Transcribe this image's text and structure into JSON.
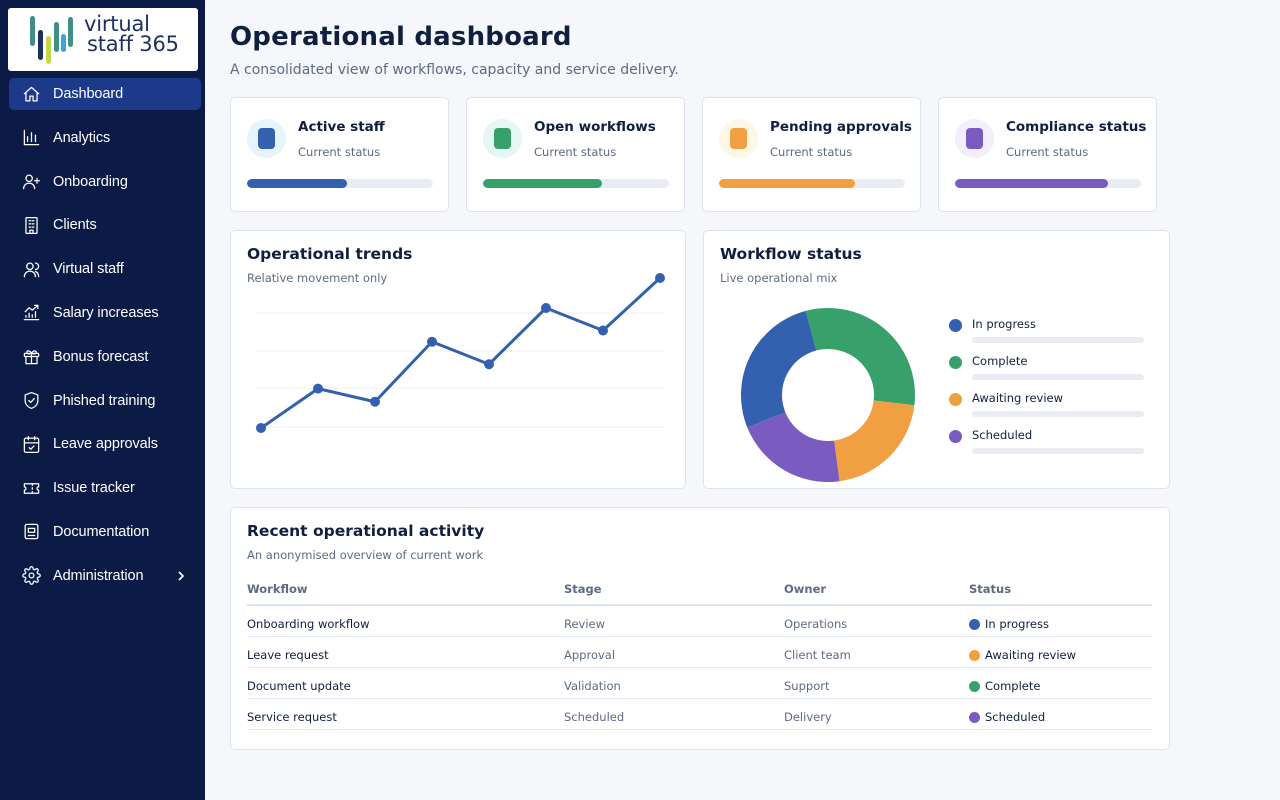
{
  "brand": {
    "line1": "virtual",
    "line2": "staff 365"
  },
  "sidebar": {
    "items": [
      {
        "label": "Dashboard",
        "icon": "home-icon",
        "active": true
      },
      {
        "label": "Analytics",
        "icon": "bar-chart-icon"
      },
      {
        "label": "Onboarding",
        "icon": "user-plus-icon"
      },
      {
        "label": "Clients",
        "icon": "building-icon"
      },
      {
        "label": "Virtual staff",
        "icon": "users-icon"
      },
      {
        "label": "Salary increases",
        "icon": "trending-up-chart-icon"
      },
      {
        "label": "Bonus forecast",
        "icon": "gift-icon"
      },
      {
        "label": "Phished training",
        "icon": "shield-check-icon"
      },
      {
        "label": "Leave approvals",
        "icon": "calendar-check-icon"
      },
      {
        "label": "Issue tracker",
        "icon": "ticket-icon"
      },
      {
        "label": "Documentation",
        "icon": "document-icon"
      },
      {
        "label": "Administration",
        "icon": "gear-icon",
        "chevron": "chevron-right-icon"
      }
    ]
  },
  "header": {
    "title": "Operational dashboard",
    "subtitle": "A consolidated view of workflows, capacity and service delivery."
  },
  "stats": [
    {
      "title": "Active staff",
      "sub": "Current status",
      "color": "#3460b0",
      "tint": "#e6f4fb",
      "progress": 0.54
    },
    {
      "title": "Open workflows",
      "sub": "Current status",
      "color": "#38a06a",
      "tint": "#e6f6f4",
      "progress": 0.64
    },
    {
      "title": "Pending approvals",
      "sub": "Current status",
      "color": "#f0a040",
      "tint": "#fdf7e8",
      "progress": 0.73
    },
    {
      "title": "Compliance status",
      "sub": "Current status",
      "color": "#7a5bbf",
      "tint": "#f2eefb",
      "progress": 0.82
    }
  ],
  "trends": {
    "title": "Operational trends",
    "subtitle": "Relative movement only"
  },
  "workflow": {
    "title": "Workflow status",
    "subtitle": "Live operational mix"
  },
  "chart_data": [
    {
      "type": "line",
      "title": "Operational trends",
      "x": [
        1,
        2,
        3,
        4,
        5,
        6,
        7,
        8
      ],
      "series": [
        {
          "values": [
            0,
            1.05,
            0.7,
            2.3,
            1.7,
            3.2,
            2.6,
            4.0
          ]
        }
      ],
      "ylim": [
        0,
        4
      ],
      "grid": true,
      "color": "#3460b0"
    },
    {
      "type": "pie",
      "title": "Workflow status",
      "donut": true,
      "categories": [
        "In progress",
        "Complete",
        "Awaiting review",
        "Scheduled"
      ],
      "values": [
        27,
        31,
        21,
        21
      ],
      "colors": [
        "#3460b0",
        "#38a06a",
        "#f0a040",
        "#7a5bbf"
      ],
      "legend": "right"
    }
  ],
  "activity": {
    "title": "Recent operational activity",
    "subtitle": "An anonymised overview of current work",
    "columns": [
      "Workflow",
      "Stage",
      "Owner",
      "Status"
    ],
    "rows": [
      {
        "workflow": "Onboarding workflow",
        "stage": "Review",
        "owner": "Operations",
        "status": "In progress",
        "color": "#3460b0"
      },
      {
        "workflow": "Leave request",
        "stage": "Approval",
        "owner": "Client team",
        "status": "Awaiting review",
        "color": "#f0a040"
      },
      {
        "workflow": "Document update",
        "stage": "Validation",
        "owner": "Support",
        "status": "Complete",
        "color": "#38a06a"
      },
      {
        "workflow": "Service request",
        "stage": "Scheduled",
        "owner": "Delivery",
        "status": "Scheduled",
        "color": "#7a5bbf"
      }
    ]
  }
}
